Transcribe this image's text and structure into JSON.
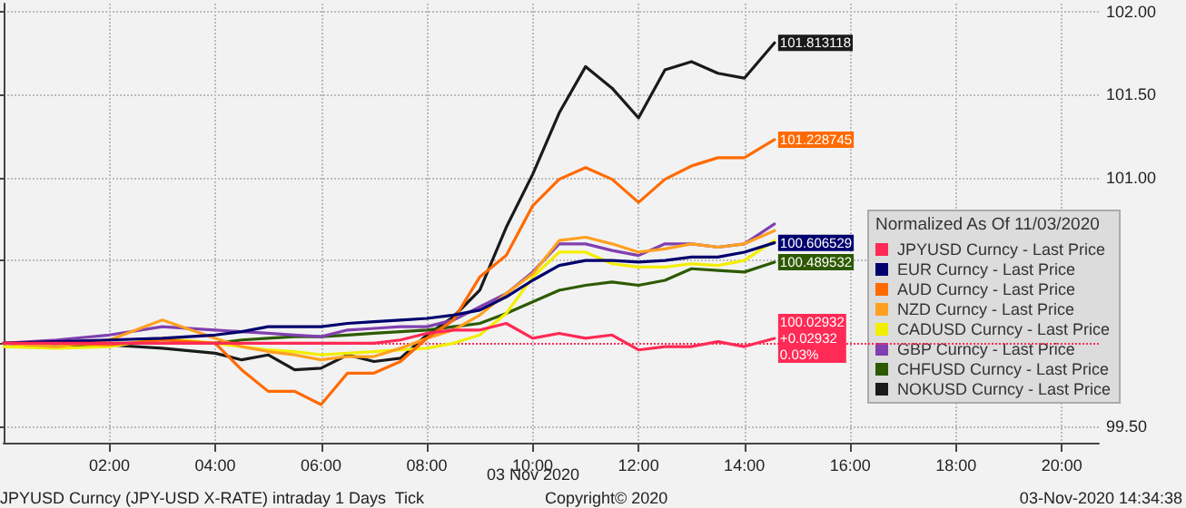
{
  "chart_data": {
    "type": "line",
    "legend_title": "Normalized As Of 11/03/2020",
    "annotations": [
      "JPYUSD Curncy (JPY-USD X-RATE) intraday 1 Days  Tick",
      "03 Nov 2020",
      "Copyright© 2020",
      "03-Nov-2020 14:34:38"
    ],
    "x": [
      0,
      1,
      2,
      3,
      4,
      4.5,
      5,
      5.5,
      6,
      6.5,
      7,
      7.5,
      8,
      8.5,
      9,
      9.5,
      10,
      10.5,
      11,
      11.5,
      12,
      12.5,
      13,
      13.5,
      14,
      14.57
    ],
    "series": [
      {
        "name": "JPYUSD Curncy - Last Price",
        "color": "#ff2a55",
        "values": [
          100,
          100,
          100,
          100,
          100,
          100,
          100,
          100,
          100,
          100,
          100,
          100.02,
          100.06,
          100.08,
          100.08,
          100.12,
          100.03,
          100.06,
          100.03,
          100.05,
          99.96,
          99.98,
          99.98,
          100.01,
          99.98,
          100.02932
        ],
        "value_labels": [
          null,
          null,
          null,
          null,
          null,
          null,
          null,
          null,
          null,
          null,
          null,
          null,
          null,
          null,
          null,
          null,
          null,
          null,
          null,
          null,
          null,
          null,
          null,
          null,
          null,
          "100.02932\n+0.02932\n0.03%"
        ]
      },
      {
        "name": "EUR Curncy - Last Price",
        "color": "#00006e",
        "values": [
          100,
          100.01,
          100.02,
          100.03,
          100.05,
          100.07,
          100.1,
          100.1,
          100.1,
          100.12,
          100.13,
          100.14,
          100.15,
          100.17,
          100.2,
          100.28,
          100.38,
          100.47,
          100.5,
          100.5,
          100.49,
          100.5,
          100.52,
          100.52,
          100.55,
          100.606529
        ],
        "value_labels": [
          null,
          null,
          null,
          null,
          null,
          null,
          null,
          null,
          null,
          null,
          null,
          null,
          null,
          null,
          null,
          null,
          null,
          null,
          null,
          null,
          null,
          null,
          null,
          null,
          null,
          "100.606529"
        ]
      },
      {
        "name": "AUD Curncy - Last Price",
        "color": "#ff6a00",
        "values": [
          100,
          100,
          99.99,
          100.02,
          100,
          99.84,
          99.71,
          99.71,
          99.63,
          99.82,
          99.82,
          99.89,
          100.03,
          100.14,
          100.4,
          100.53,
          100.83,
          100.99,
          101.06,
          100.99,
          100.85,
          100.99,
          101.07,
          101.12,
          101.12,
          101.228745
        ],
        "value_labels": [
          null,
          null,
          null,
          null,
          null,
          null,
          null,
          null,
          null,
          null,
          null,
          null,
          null,
          null,
          null,
          null,
          null,
          null,
          null,
          null,
          null,
          null,
          null,
          null,
          null,
          "101.228745"
        ]
      },
      {
        "name": "NZD Curncy - Last Price",
        "color": "#ffa020",
        "values": [
          100,
          99.98,
          100.02,
          100.14,
          100.03,
          99.98,
          99.95,
          99.93,
          99.9,
          99.92,
          99.92,
          99.97,
          100.03,
          100.08,
          100.17,
          100.3,
          100.42,
          100.62,
          100.64,
          100.6,
          100.55,
          100.57,
          100.6,
          100.58,
          100.6,
          100.68
        ]
      },
      {
        "name": "CADUSD Curncy - Last Price",
        "color": "#f2ee00",
        "values": [
          99.98,
          99.97,
          99.98,
          100.03,
          100,
          99.98,
          99.96,
          99.95,
          99.93,
          99.94,
          99.95,
          99.96,
          99.97,
          100,
          100.05,
          100.18,
          100.4,
          100.55,
          100.55,
          100.48,
          100.46,
          100.46,
          100.48,
          100.47,
          100.5,
          100.62
        ]
      },
      {
        "name": "GBP Curncy - Last Price",
        "color": "#8040b0",
        "values": [
          100,
          100.02,
          100.05,
          100.1,
          100.08,
          100.07,
          100.06,
          100.05,
          100.04,
          100.08,
          100.09,
          100.1,
          100.1,
          100.14,
          100.22,
          100.3,
          100.43,
          100.6,
          100.6,
          100.56,
          100.53,
          100.6,
          100.6,
          100.58,
          100.6,
          100.72
        ]
      },
      {
        "name": "CHFUSD Curncy - Last Price",
        "color": "#2d5a00",
        "values": [
          100,
          100,
          100,
          100,
          100,
          100.02,
          100.03,
          100.04,
          100.04,
          100.05,
          100.06,
          100.07,
          100.08,
          100.1,
          100.12,
          100.18,
          100.25,
          100.32,
          100.35,
          100.37,
          100.35,
          100.38,
          100.45,
          100.44,
          100.43,
          100.489532
        ],
        "value_labels": [
          null,
          null,
          null,
          null,
          null,
          null,
          null,
          null,
          null,
          null,
          null,
          null,
          null,
          null,
          null,
          null,
          null,
          null,
          null,
          null,
          null,
          null,
          null,
          null,
          null,
          "100.489532"
        ]
      },
      {
        "name": "NOKUSD Curncy - Last Price",
        "color": "#1a1a1a",
        "values": [
          100,
          99.98,
          99.99,
          99.97,
          99.94,
          99.9,
          99.93,
          99.84,
          99.85,
          99.93,
          99.89,
          99.91,
          100.05,
          100.16,
          100.32,
          100.7,
          101.02,
          101.39,
          101.67,
          101.54,
          101.36,
          101.65,
          101.7,
          101.63,
          101.6,
          101.813118
        ],
        "value_labels": [
          null,
          null,
          null,
          null,
          null,
          null,
          null,
          null,
          null,
          null,
          null,
          null,
          null,
          null,
          null,
          null,
          null,
          null,
          null,
          null,
          null,
          null,
          null,
          null,
          null,
          "101.813118"
        ]
      }
    ],
    "xlim": [
      0,
      20.7
    ],
    "xticks": [
      {
        "value": 2,
        "label": "02:00"
      },
      {
        "value": 4,
        "label": "04:00"
      },
      {
        "value": 6,
        "label": "06:00"
      },
      {
        "value": 8,
        "label": "08:00"
      },
      {
        "value": 10,
        "label": "10:00"
      },
      {
        "value": 12,
        "label": "12:00"
      },
      {
        "value": 14,
        "label": "14:00"
      },
      {
        "value": 16,
        "label": "16:00"
      },
      {
        "value": 18,
        "label": "18:00"
      },
      {
        "value": 20,
        "label": "20:00"
      }
    ],
    "ylim": [
      99.4,
      102.05
    ],
    "yticks": [
      {
        "value": 99.5,
        "label": "99.50"
      },
      {
        "value": 100,
        "label": null
      },
      {
        "value": 100.5,
        "label": null
      },
      {
        "value": 101,
        "label": "101.00"
      },
      {
        "value": 101.5,
        "label": "101.50"
      },
      {
        "value": 102,
        "label": "102.00"
      }
    ],
    "ref_lines": [
      {
        "axis": "y",
        "value": 100,
        "color": "#ff2a55",
        "line_style": "dotted"
      }
    ],
    "grid": true,
    "legend": "bottom right",
    "line_style": "solid",
    "marker": "none"
  }
}
